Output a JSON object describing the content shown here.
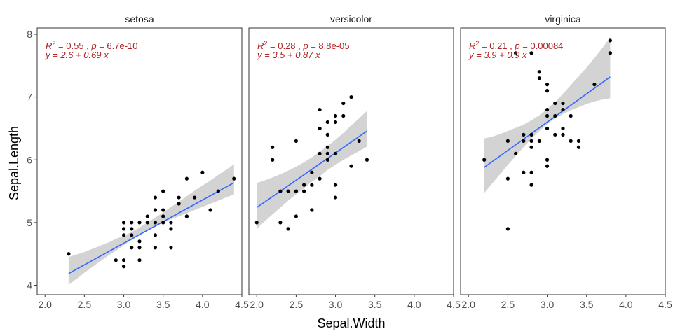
{
  "chart_data": {
    "type": "scatter",
    "x": [
      2.3,
      2.9,
      3.0,
      3.0,
      3.0,
      3.0,
      3.0,
      3.1,
      3.1,
      3.1,
      3.1,
      3.2,
      3.2,
      3.2,
      3.2,
      3.3,
      3.3,
      3.4,
      3.4,
      3.4,
      3.4,
      3.4,
      3.5,
      3.5,
      3.5,
      3.5,
      3.6,
      3.6,
      3.6,
      3.7,
      3.7,
      3.8,
      3.8,
      3.8,
      3.9,
      4.0,
      4.1,
      4.2,
      4.4,
      2.0,
      2.2,
      2.2,
      2.3,
      2.3,
      2.4,
      2.4,
      2.5,
      2.5,
      2.5,
      2.6,
      2.6,
      2.7,
      2.7,
      2.7,
      2.8,
      2.8,
      2.8,
      2.8,
      2.9,
      2.9,
      2.9,
      2.9,
      2.9,
      3.0,
      3.0,
      3.0,
      3.0,
      3.0,
      3.1,
      3.1,
      3.2,
      3.2,
      3.3,
      3.4,
      2.2,
      2.5,
      2.5,
      2.5,
      2.6,
      2.6,
      2.7,
      2.7,
      2.7,
      2.8,
      2.8,
      2.8,
      2.8,
      2.8,
      2.8,
      2.9,
      2.9,
      2.9,
      3.0,
      3.0,
      3.0,
      3.0,
      3.0,
      3.0,
      3.0,
      3.1,
      3.1,
      3.1,
      3.2,
      3.2,
      3.2,
      3.2,
      3.3,
      3.3,
      3.4,
      3.4,
      3.6,
      3.8,
      3.8
    ],
    "y": [
      4.5,
      4.4,
      4.3,
      4.4,
      4.8,
      4.9,
      5.0,
      4.6,
      4.8,
      4.9,
      5.0,
      4.4,
      4.6,
      4.7,
      5.0,
      5.0,
      5.1,
      4.6,
      4.8,
      5.0,
      5.2,
      5.4,
      5.0,
      5.1,
      5.2,
      5.5,
      4.6,
      4.9,
      5.0,
      5.3,
      5.4,
      5.1,
      5.1,
      5.7,
      5.4,
      5.8,
      5.2,
      5.5,
      5.7,
      5.0,
      6.0,
      6.2,
      5.0,
      5.5,
      4.9,
      5.5,
      5.5,
      5.1,
      6.3,
      5.5,
      5.6,
      5.2,
      5.6,
      5.8,
      5.7,
      6.1,
      6.5,
      6.8,
      6.0,
      6.1,
      6.2,
      6.4,
      6.6,
      5.4,
      5.6,
      6.1,
      6.6,
      6.7,
      6.7,
      6.9,
      5.9,
      7.0,
      6.3,
      6.0,
      6.0,
      4.9,
      5.7,
      6.3,
      6.1,
      7.7,
      5.8,
      6.3,
      6.4,
      5.6,
      5.8,
      6.2,
      6.3,
      6.4,
      7.7,
      6.3,
      7.3,
      7.4,
      5.9,
      6.0,
      6.5,
      6.7,
      6.8,
      7.1,
      7.2,
      6.4,
      6.7,
      6.9,
      6.4,
      6.5,
      6.8,
      6.9,
      6.3,
      6.7,
      6.2,
      6.3,
      7.2,
      7.7,
      7.9
    ],
    "facet": [
      "setosa",
      "setosa",
      "setosa",
      "setosa",
      "setosa",
      "setosa",
      "setosa",
      "setosa",
      "setosa",
      "setosa",
      "setosa",
      "setosa",
      "setosa",
      "setosa",
      "setosa",
      "setosa",
      "setosa",
      "setosa",
      "setosa",
      "setosa",
      "setosa",
      "setosa",
      "setosa",
      "setosa",
      "setosa",
      "setosa",
      "setosa",
      "setosa",
      "setosa",
      "setosa",
      "setosa",
      "setosa",
      "setosa",
      "setosa",
      "setosa",
      "setosa",
      "setosa",
      "setosa",
      "setosa",
      "versicolor",
      "versicolor",
      "versicolor",
      "versicolor",
      "versicolor",
      "versicolor",
      "versicolor",
      "versicolor",
      "versicolor",
      "versicolor",
      "versicolor",
      "versicolor",
      "versicolor",
      "versicolor",
      "versicolor",
      "versicolor",
      "versicolor",
      "versicolor",
      "versicolor",
      "versicolor",
      "versicolor",
      "versicolor",
      "versicolor",
      "versicolor",
      "versicolor",
      "versicolor",
      "versicolor",
      "versicolor",
      "versicolor",
      "versicolor",
      "versicolor",
      "versicolor",
      "versicolor",
      "versicolor",
      "versicolor",
      "virginica",
      "virginica",
      "virginica",
      "virginica",
      "virginica",
      "virginica",
      "virginica",
      "virginica",
      "virginica",
      "virginica",
      "virginica",
      "virginica",
      "virginica",
      "virginica",
      "virginica",
      "virginica",
      "virginica",
      "virginica",
      "virginica",
      "virginica",
      "virginica",
      "virginica",
      "virginica",
      "virginica",
      "virginica",
      "virginica",
      "virginica",
      "virginica",
      "virginica",
      "virginica",
      "virginica",
      "virginica",
      "virginica",
      "virginica",
      "virginica",
      "virginica",
      "virginica",
      "virginica",
      "virginica"
    ],
    "xlabel": "Sepal.Width",
    "ylabel": "Sepal.Length",
    "xlim": [
      1.9,
      4.5
    ],
    "ylim": [
      3.85,
      8.1
    ],
    "xticks": [
      2.0,
      2.5,
      3.0,
      3.5,
      4.0,
      4.5
    ],
    "yticks": [
      4,
      5,
      6,
      7,
      8
    ],
    "x_tick_labels": [
      "2.0",
      "2.5",
      "3.0",
      "3.5",
      "4.0",
      "4.5"
    ],
    "y_tick_labels": [
      "4",
      "5",
      "6",
      "7",
      "8"
    ],
    "grid": false,
    "facets": [
      {
        "name": "setosa",
        "fit": {
          "intercept": 2.6,
          "slope": 0.69,
          "x_range": [
            2.3,
            4.4
          ]
        },
        "band": {
          "x": [
            2.3,
            2.4,
            2.5,
            2.6,
            2.7,
            2.8,
            2.9,
            3.0,
            3.1,
            3.2,
            3.3,
            3.4,
            3.5,
            3.6,
            3.7,
            3.8,
            3.9,
            4.0,
            4.1,
            4.2,
            4.3,
            4.4
          ],
          "lower": [
            4.01,
            4.1,
            4.2,
            4.29,
            4.38,
            4.47,
            4.55,
            4.64,
            4.72,
            4.8,
            4.87,
            4.93,
            5.0,
            5.05,
            5.1,
            5.15,
            5.2,
            5.25,
            5.3,
            5.35,
            5.4,
            5.45
          ],
          "upper": [
            4.45,
            4.49,
            4.53,
            4.58,
            4.63,
            4.68,
            4.74,
            4.79,
            4.85,
            4.92,
            5.0,
            5.08,
            5.16,
            5.25,
            5.33,
            5.42,
            5.51,
            5.59,
            5.67,
            5.76,
            5.84,
            5.93
          ]
        },
        "annotation": {
          "r2_value": "= 0.55",
          "p_value": "= 6.7e-10",
          "equation": "y = 2.6 + 0.69 x"
        }
      },
      {
        "name": "versicolor",
        "fit": {
          "intercept": 3.5,
          "slope": 0.87,
          "x_range": [
            2.0,
            3.4
          ]
        },
        "band": {
          "x": [
            2.0,
            2.1,
            2.2,
            2.3,
            2.4,
            2.5,
            2.6,
            2.7,
            2.8,
            2.9,
            3.0,
            3.1,
            3.2,
            3.3,
            3.4
          ],
          "lower": [
            4.9,
            5.02,
            5.13,
            5.24,
            5.35,
            5.45,
            5.55,
            5.65,
            5.74,
            5.84,
            5.92,
            6.0,
            6.07,
            6.14,
            6.21
          ],
          "upper": [
            5.63,
            5.67,
            5.72,
            5.77,
            5.83,
            5.89,
            5.96,
            6.04,
            6.13,
            6.22,
            6.32,
            6.43,
            6.55,
            6.66,
            6.78
          ]
        },
        "annotation": {
          "r2_value": "= 0.28",
          "p_value": "= 8.8e-05",
          "equation": "y = 3.5 + 0.87 x"
        }
      },
      {
        "name": "virginica",
        "fit": {
          "intercept": 3.9,
          "slope": 0.9,
          "x_range": [
            2.2,
            3.8
          ]
        },
        "band": {
          "x": [
            2.2,
            2.3,
            2.4,
            2.5,
            2.6,
            2.7,
            2.8,
            2.9,
            3.0,
            3.1,
            3.2,
            3.3,
            3.4,
            3.5,
            3.6,
            3.7,
            3.8
          ],
          "lower": [
            5.47,
            5.62,
            5.77,
            5.92,
            6.06,
            6.2,
            6.34,
            6.46,
            6.57,
            6.66,
            6.73,
            6.79,
            6.84,
            6.89,
            6.93,
            6.96,
            6.98
          ],
          "upper": [
            6.34,
            6.37,
            6.41,
            6.46,
            6.51,
            6.56,
            6.63,
            6.71,
            6.81,
            6.92,
            7.05,
            7.19,
            7.33,
            7.47,
            7.62,
            7.78,
            7.95
          ]
        },
        "annotation": {
          "r2_value": "= 0.21",
          "p_value": "= 0.00084",
          "equation": "y = 3.9 + 0.9 x"
        }
      }
    ],
    "annotation_labels": {
      "r2_symbol": "R",
      "r2_power": "2",
      "separator": ", ",
      "p_symbol": "p"
    },
    "colors": {
      "point": "#000000",
      "fit_line": "#3366ff",
      "band": "#d3d3d3",
      "annotation": "#b22222",
      "strip_background": "#ffffff",
      "panel_border": "#333333"
    }
  }
}
